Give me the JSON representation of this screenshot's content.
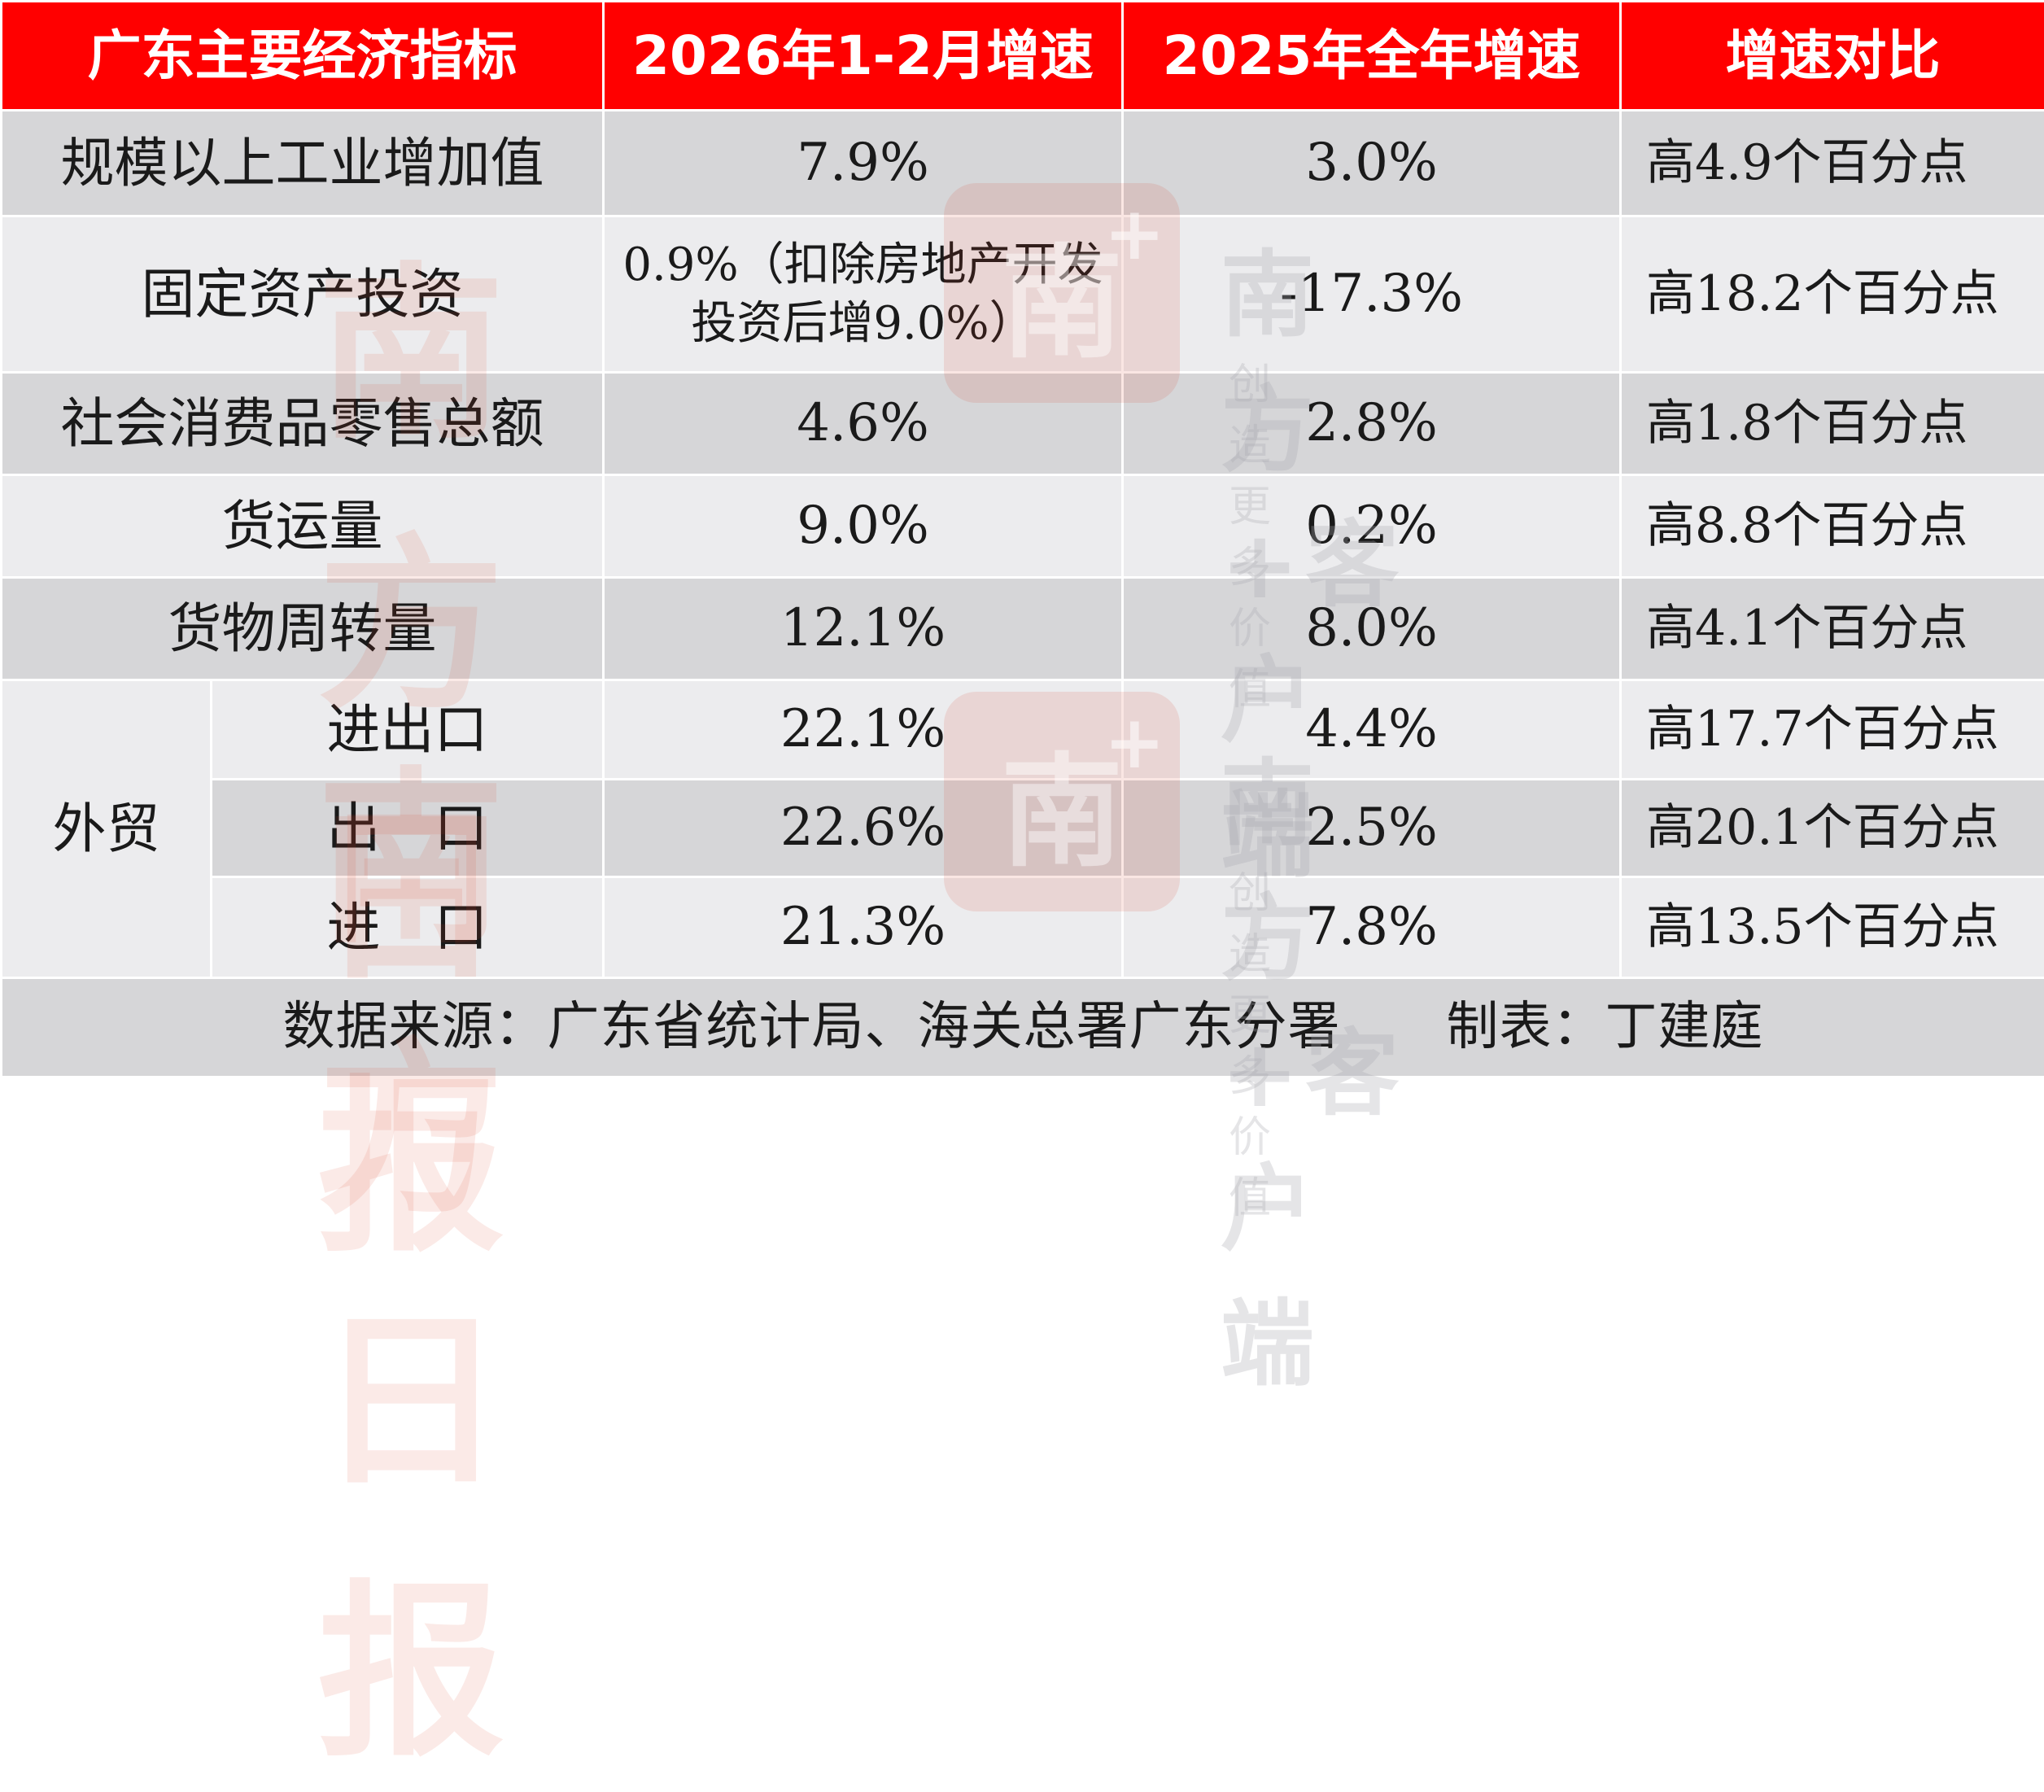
{
  "header": {
    "col1": "广东主要经济指标",
    "col2": "2026年1-2月增速",
    "col3": "2025年全年增速",
    "col4": "增速对比"
  },
  "rows": [
    {
      "name": "规模以上工业增加值",
      "v2026": "7.9%",
      "v2025": "3.0%",
      "compare": "高4.9个百分点"
    },
    {
      "name": "固定资产投资",
      "v2026": "0.9%（扣除房地产开发投资后增9.0%）",
      "v2025": "-17.3%",
      "compare": "高18.2个百分点"
    },
    {
      "name": "社会消费品零售总额",
      "v2026": "4.6%",
      "v2025": "2.8%",
      "compare": "高1.8个百分点"
    },
    {
      "name": "货运量",
      "v2026": "9.0%",
      "v2025": "0.2%",
      "compare": "高8.8个百分点"
    },
    {
      "name": "货物周转量",
      "v2026": "12.1%",
      "v2025": "8.0%",
      "compare": "高4.1个百分点"
    }
  ],
  "trade": {
    "label": "外贸",
    "rows": [
      {
        "name": "进出口",
        "v2026": "22.1%",
        "v2025": "4.4%",
        "compare": "高17.7个百分点"
      },
      {
        "name": "出　口",
        "v2026": "22.6%",
        "v2025": "2.5%",
        "compare": "高20.1个百分点"
      },
      {
        "name": "进　口",
        "v2026": "21.3%",
        "v2025": "7.8%",
        "compare": "高13.5个百分点"
      }
    ]
  },
  "footer": "数据来源：广东省统计局、海关总署广东分署　　制表：丁建庭",
  "watermarks": {
    "paper": "南方日报",
    "client": "南方+客户端",
    "slogan": "创造更多价值",
    "logo_text": "南方+"
  },
  "colors": {
    "header_bg": "#ff0000",
    "row_dark": "#d6d6d8",
    "row_light": "#ececee"
  }
}
